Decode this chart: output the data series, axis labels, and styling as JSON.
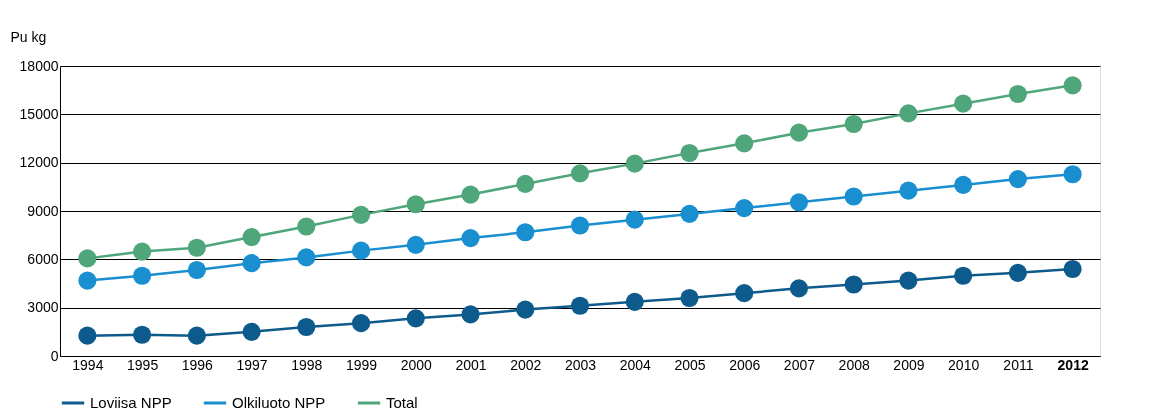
{
  "chart_data": {
    "type": "line",
    "ylabel": "Pu kg",
    "categories": [
      "1994",
      "1995",
      "1996",
      "1997",
      "1998",
      "1999",
      "2000",
      "2001",
      "2002",
      "2003",
      "2004",
      "2005",
      "2006",
      "2007",
      "2008",
      "2009",
      "2010",
      "2011",
      "2012"
    ],
    "series": [
      {
        "name": "Loviisa NPP",
        "color": "#0d5a8c",
        "values": [
          1260,
          1320,
          1260,
          1500,
          1800,
          2040,
          2340,
          2580,
          2880,
          3120,
          3360,
          3600,
          3900,
          4200,
          4440,
          4680,
          4980,
          5160,
          5400
        ]
      },
      {
        "name": "Olkiluoto NPP",
        "color": "#1a8fd0",
        "values": [
          4680,
          4980,
          5340,
          5760,
          6120,
          6540,
          6900,
          7320,
          7680,
          8100,
          8460,
          8820,
          9180,
          9540,
          9900,
          10260,
          10620,
          10980,
          11280
        ]
      },
      {
        "name": "Total",
        "color": "#4fa67a",
        "values": [
          6060,
          6480,
          6720,
          7380,
          8040,
          8760,
          9420,
          10020,
          10680,
          11340,
          11940,
          12600,
          13200,
          13860,
          14400,
          15060,
          15660,
          16260,
          16800
        ]
      }
    ],
    "ylim": [
      0,
      18000
    ],
    "yticks": [
      0,
      3000,
      6000,
      9000,
      12000,
      15000,
      18000
    ],
    "grid": "y",
    "legend": "bottom left",
    "marker": "circle",
    "line_style": "solid"
  }
}
